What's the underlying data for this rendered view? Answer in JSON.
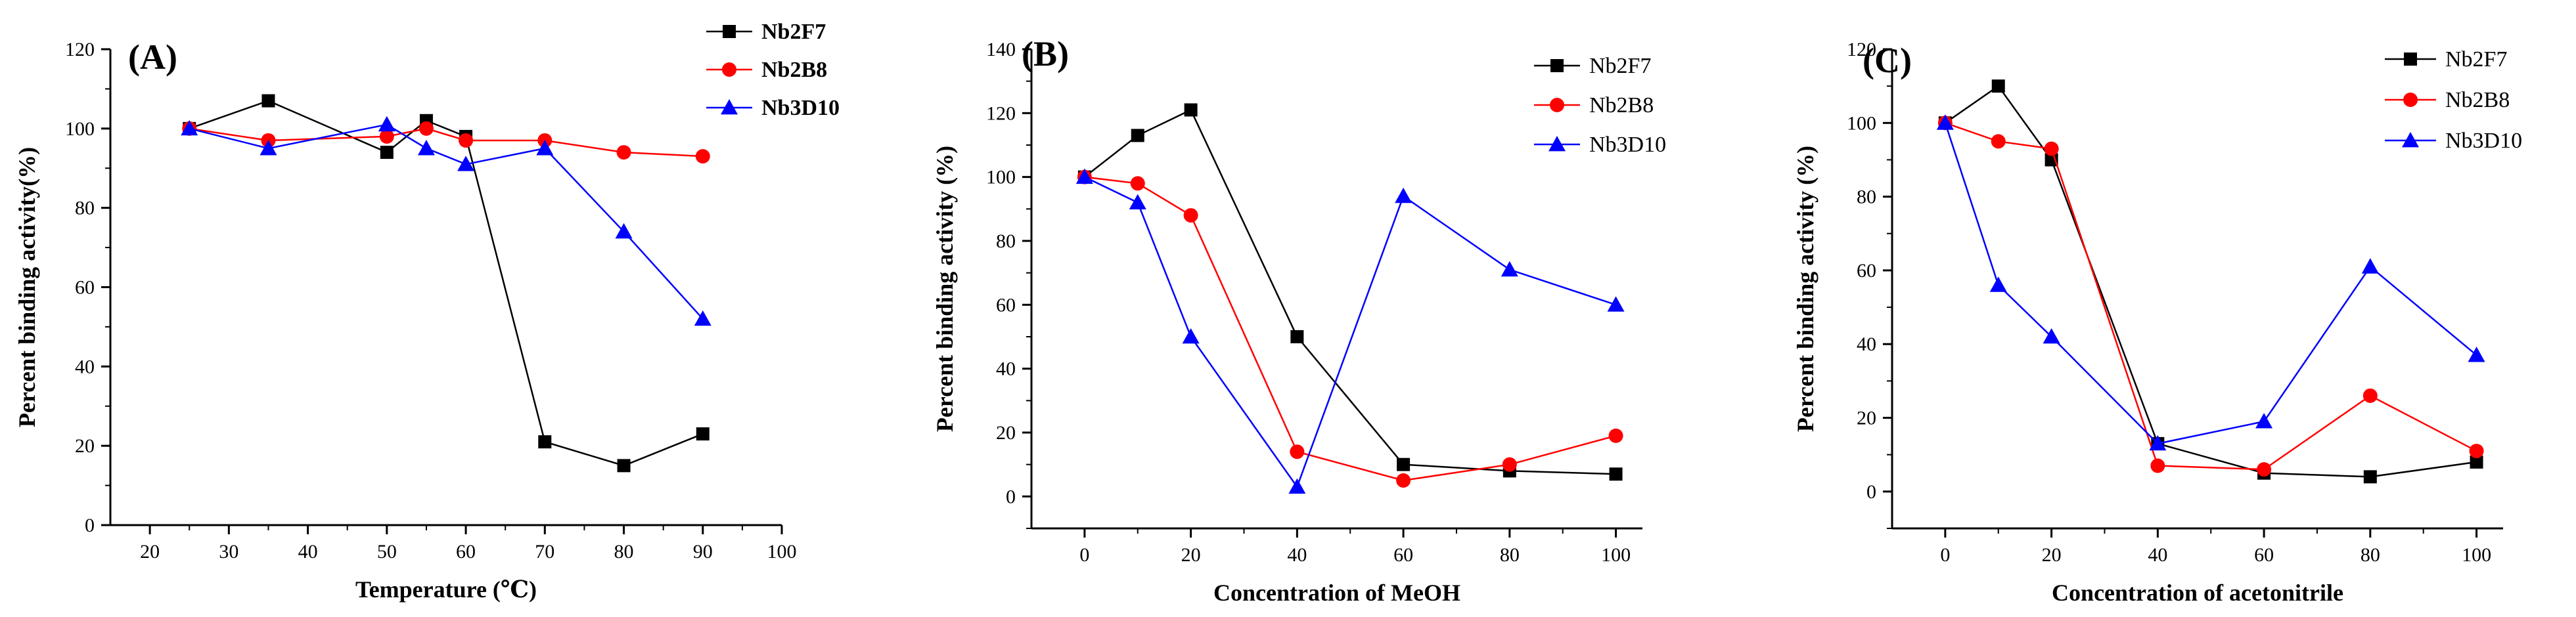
{
  "colors": {
    "Nb2F7": "#000000",
    "Nb2B8": "#ff0000",
    "Nb3D10": "#0000ff"
  },
  "chart_data": [
    {
      "type": "line",
      "panel": "(A)",
      "xlabel": "Temperature (℃)",
      "ylabel": "Percent binding activity(%)",
      "xlim": [
        15,
        100
      ],
      "ylim": [
        0,
        120
      ],
      "xticks": [
        20,
        30,
        40,
        50,
        60,
        70,
        80,
        90,
        100
      ],
      "yticks": [
        0,
        20,
        40,
        60,
        80,
        100,
        120
      ],
      "legend_bold": true,
      "series": [
        {
          "name": "Nb2F7",
          "marker": "square",
          "x": [
            25,
            35,
            50,
            55,
            60,
            70,
            80,
            90
          ],
          "values": [
            100,
            107,
            94,
            102,
            98,
            21,
            15,
            23
          ]
        },
        {
          "name": "Nb2B8",
          "marker": "circle",
          "x": [
            25,
            35,
            50,
            55,
            60,
            70,
            80,
            90
          ],
          "values": [
            100,
            97,
            98,
            100,
            97,
            97,
            94,
            93
          ]
        },
        {
          "name": "Nb3D10",
          "marker": "triangle",
          "x": [
            25,
            35,
            50,
            55,
            60,
            70,
            80,
            90
          ],
          "values": [
            100,
            95,
            101,
            95,
            91,
            95,
            74,
            52
          ]
        }
      ]
    },
    {
      "type": "line",
      "panel": "(B)",
      "xlabel": "Concentration of MeOH",
      "ylabel": "Percent binding activity (%)",
      "xlim": [
        -10,
        105
      ],
      "ylim": [
        -10,
        140
      ],
      "xticks": [
        0,
        20,
        40,
        60,
        80,
        100
      ],
      "yticks": [
        0,
        20,
        40,
        60,
        80,
        100,
        120,
        140
      ],
      "legend_bold": false,
      "series": [
        {
          "name": "Nb2F7",
          "marker": "square",
          "x": [
            0,
            10,
            20,
            40,
            60,
            80,
            100
          ],
          "values": [
            100,
            113,
            121,
            50,
            10,
            8,
            7
          ]
        },
        {
          "name": "Nb2B8",
          "marker": "circle",
          "x": [
            0,
            10,
            20,
            40,
            60,
            80,
            100
          ],
          "values": [
            100,
            98,
            88,
            14,
            5,
            10,
            19
          ]
        },
        {
          "name": "Nb3D10",
          "marker": "triangle",
          "x": [
            0,
            10,
            20,
            40,
            60,
            80,
            100
          ],
          "values": [
            100,
            92,
            50,
            3,
            94,
            71,
            60
          ]
        }
      ]
    },
    {
      "type": "line",
      "panel": "(C)",
      "xlabel": "Concentration of acetonitrile",
      "ylabel": "Percent binding activity (%)",
      "xlim": [
        -10,
        105
      ],
      "ylim": [
        -10,
        120
      ],
      "xticks": [
        0,
        20,
        40,
        60,
        80,
        100
      ],
      "yticks": [
        0,
        20,
        40,
        60,
        80,
        100,
        120
      ],
      "legend_bold": false,
      "series": [
        {
          "name": "Nb2F7",
          "marker": "square",
          "x": [
            0,
            10,
            20,
            40,
            60,
            80,
            100
          ],
          "values": [
            100,
            110,
            90,
            13,
            5,
            4,
            8
          ]
        },
        {
          "name": "Nb2B8",
          "marker": "circle",
          "x": [
            0,
            10,
            20,
            40,
            60,
            80,
            100
          ],
          "values": [
            100,
            95,
            93,
            7,
            6,
            26,
            11
          ]
        },
        {
          "name": "Nb3D10",
          "marker": "triangle",
          "x": [
            0,
            10,
            20,
            40,
            60,
            80,
            100
          ],
          "values": [
            100,
            56,
            42,
            13,
            19,
            61,
            37
          ]
        }
      ]
    }
  ]
}
